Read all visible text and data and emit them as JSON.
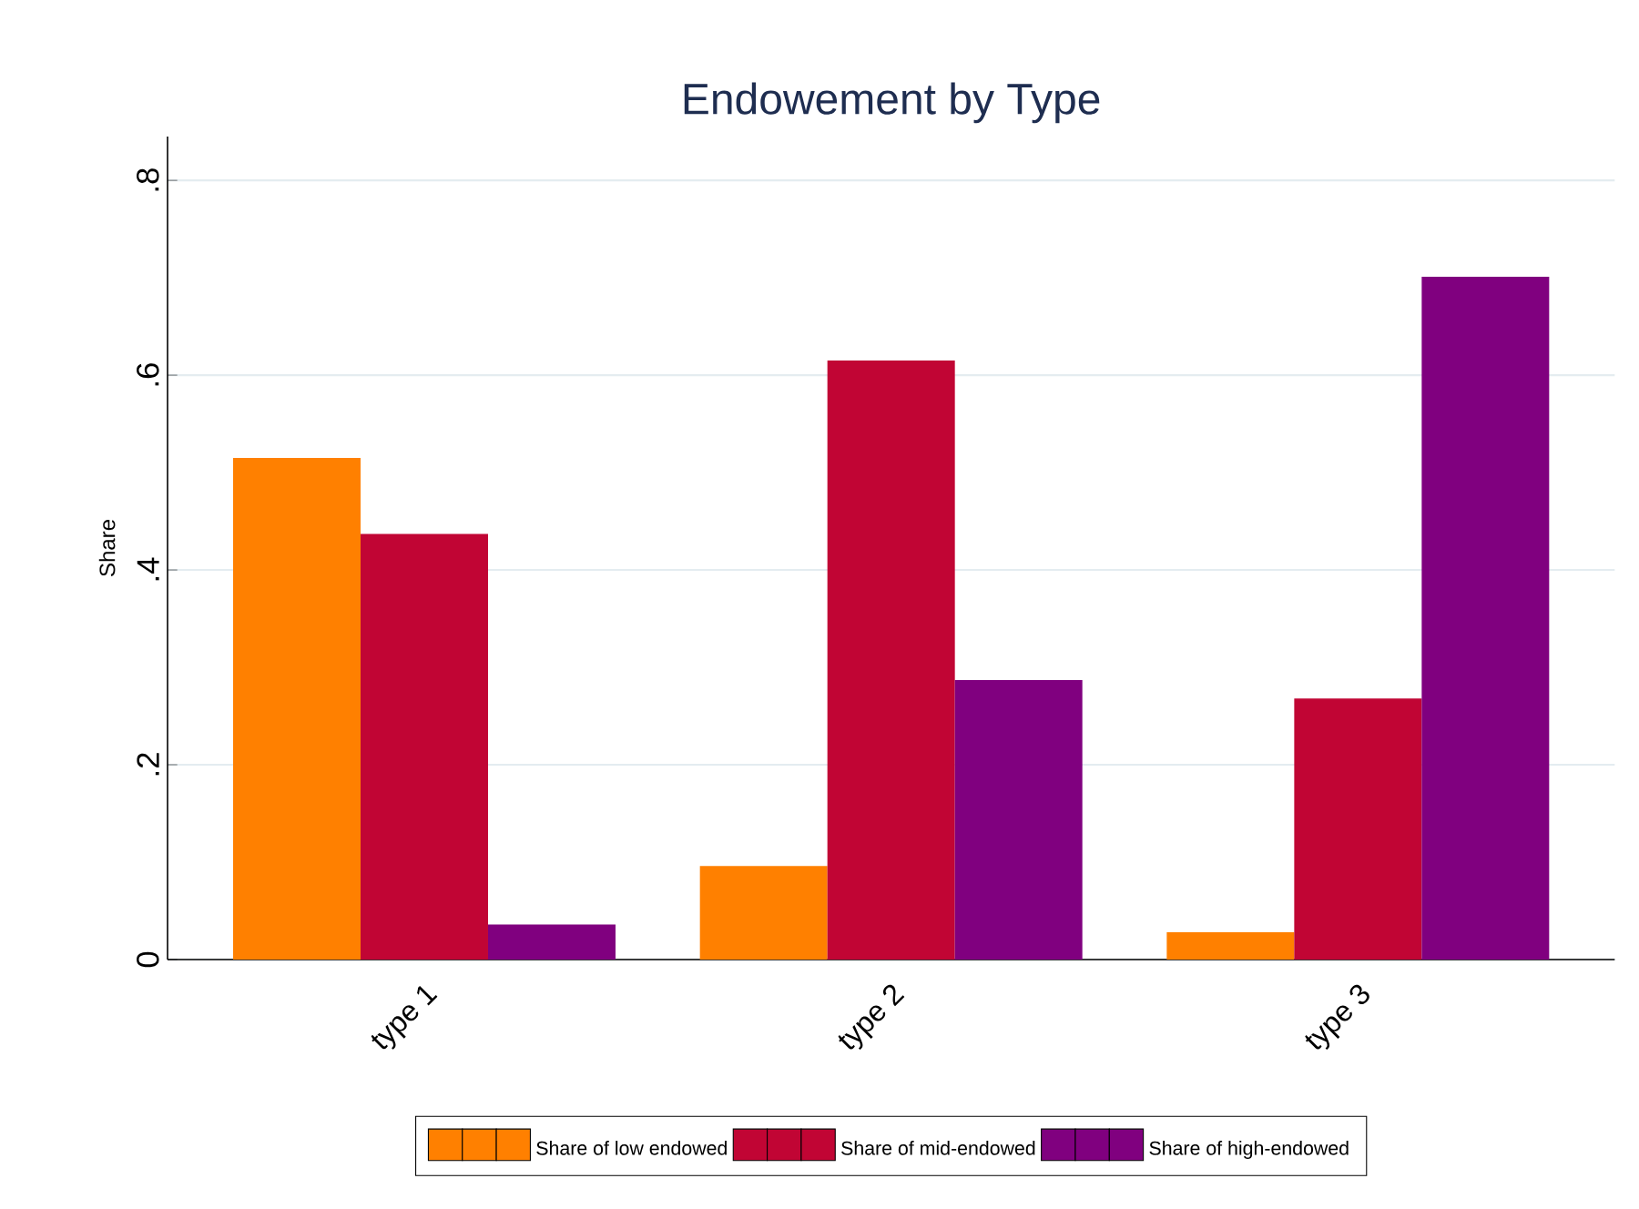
{
  "chart_data": {
    "type": "bar",
    "title": "Endowement by Type",
    "ylabel": "Share",
    "categories": [
      "type 1",
      "type 2",
      "type 3"
    ],
    "series": [
      {
        "name": "Share of low endowed",
        "color": "#ff8000",
        "values": [
          0.515,
          0.096,
          0.028
        ]
      },
      {
        "name": "Share of mid-endowed",
        "color": "#c10534",
        "values": [
          0.437,
          0.615,
          0.268
        ]
      },
      {
        "name": "Share of high-endowed",
        "color": "#80007f",
        "values": [
          0.036,
          0.287,
          0.701
        ]
      }
    ],
    "ylim": [
      0,
      0.845
    ],
    "yticks": [
      {
        "value": 0,
        "label": "0"
      },
      {
        "value": 0.2,
        "label": ".2"
      },
      {
        "value": 0.4,
        "label": ".4"
      },
      {
        "value": 0.6,
        "label": ".6"
      },
      {
        "value": 0.8,
        "label": ".8"
      }
    ],
    "grid": "y",
    "legend": "bottom"
  }
}
